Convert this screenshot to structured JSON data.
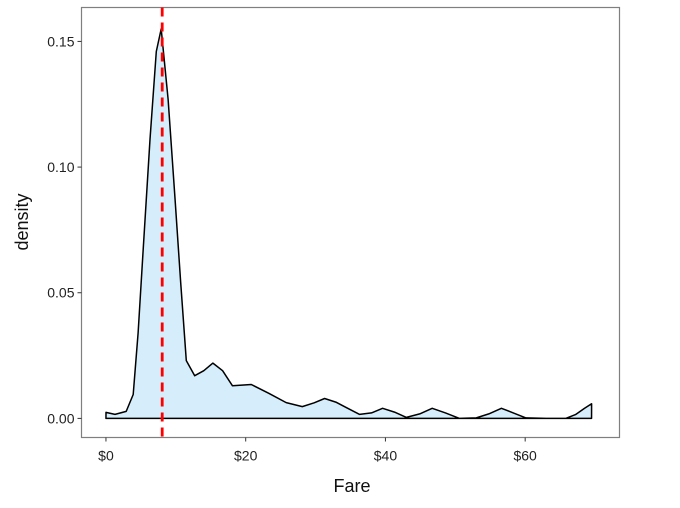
{
  "chart_data": {
    "type": "area",
    "title": "",
    "xlabel": "Fare",
    "ylabel": "density",
    "xlim": [
      -3.5,
      73.5
    ],
    "ylim": [
      -0.0076,
      0.1635
    ],
    "x_ticks": [
      0,
      20,
      40,
      60
    ],
    "x_tick_labels": [
      "$0",
      "$20",
      "$40",
      "$60"
    ],
    "y_ticks": [
      0,
      0.05,
      0.1,
      0.15
    ],
    "y_tick_labels": [
      "0.00",
      "0.05",
      "0.10",
      "0.15"
    ],
    "grid": false,
    "fill_color": "#d6eefb",
    "line_color": "#000000",
    "density": {
      "x": [
        0,
        1.3,
        2.9,
        3.9,
        4.6,
        5.3,
        6.3,
        7.2,
        7.9,
        8.9,
        9.9,
        10.7,
        11.5,
        12.7,
        14.0,
        15.3,
        16.7,
        18.1,
        20.8,
        23.3,
        25.8,
        28.1,
        29.8,
        31.3,
        32.9,
        34.4,
        36.3,
        38.0,
        39.6,
        41.3,
        43.0,
        44.9,
        46.7,
        48.6,
        50.6,
        53.0,
        54.8,
        56.6,
        58.3,
        60.1,
        63.0,
        65.8,
        67.2,
        68.5,
        69.5
      ],
      "y": [
        0.0024,
        0.0016,
        0.0028,
        0.0095,
        0.034,
        0.066,
        0.111,
        0.146,
        0.155,
        0.127,
        0.087,
        0.054,
        0.023,
        0.017,
        0.019,
        0.022,
        0.019,
        0.013,
        0.0135,
        0.01,
        0.0063,
        0.0047,
        0.0062,
        0.0079,
        0.0065,
        0.0043,
        0.0016,
        0.0022,
        0.004,
        0.0025,
        0.0004,
        0.0018,
        0.004,
        0.0022,
        0.0,
        0.0002,
        0.0018,
        0.004,
        0.0022,
        0.0002,
        0.0,
        0.0,
        0.0015,
        0.004,
        0.0058
      ]
    },
    "reference_line": {
      "x": 8.05,
      "color": "#ff0000",
      "style": "dashed"
    }
  }
}
